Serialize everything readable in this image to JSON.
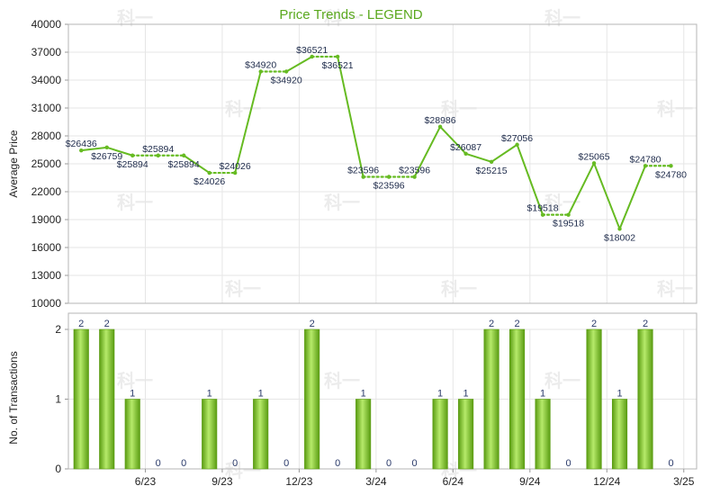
{
  "chart_data": [
    {
      "type": "line",
      "title": "Price Trends - LEGEND",
      "ylabel": "Average Price",
      "ylim": [
        10000,
        40000
      ],
      "yticks": [
        "10000",
        "13000",
        "16000",
        "19000",
        "22000",
        "25000",
        "28000",
        "31000",
        "34000",
        "37000",
        "40000"
      ],
      "grid": true,
      "color": "#66bb22",
      "points": [
        26436,
        26759,
        25894,
        25894,
        25894,
        24026,
        24026,
        34920,
        34920,
        36521,
        36521,
        23596,
        23596,
        23596,
        28986,
        26087,
        25215,
        27056,
        19518,
        19518,
        25065,
        18002,
        24780,
        24780
      ],
      "dashed_segments": [
        2,
        3,
        5,
        7,
        9,
        11,
        12,
        18,
        22
      ],
      "point_labels": [
        {
          "i": 0,
          "text": "$26436",
          "pos": "above"
        },
        {
          "i": 1,
          "text": "$26759",
          "pos": "below"
        },
        {
          "i": 2,
          "text": "$25894",
          "pos": "below"
        },
        {
          "i": 3,
          "text": "$25894",
          "pos": "above"
        },
        {
          "i": 4,
          "text": "$25894",
          "pos": "below"
        },
        {
          "i": 5,
          "text": "$24026",
          "pos": "below"
        },
        {
          "i": 6,
          "text": "$24026",
          "pos": "above"
        },
        {
          "i": 7,
          "text": "$34920",
          "pos": "above"
        },
        {
          "i": 8,
          "text": "$34920",
          "pos": "below"
        },
        {
          "i": 9,
          "text": "$36521",
          "pos": "above"
        },
        {
          "i": 10,
          "text": "$36521",
          "pos": "below"
        },
        {
          "i": 11,
          "text": "$23596",
          "pos": "above"
        },
        {
          "i": 12,
          "text": "$23596",
          "pos": "below"
        },
        {
          "i": 13,
          "text": "$23596",
          "pos": "above"
        },
        {
          "i": 14,
          "text": "$28986",
          "pos": "above"
        },
        {
          "i": 15,
          "text": "$26087",
          "pos": "above"
        },
        {
          "i": 16,
          "text": "$25215",
          "pos": "below"
        },
        {
          "i": 17,
          "text": "$27056",
          "pos": "above"
        },
        {
          "i": 18,
          "text": "$19518",
          "pos": "above"
        },
        {
          "i": 19,
          "text": "$19518",
          "pos": "below"
        },
        {
          "i": 20,
          "text": "$25065",
          "pos": "above"
        },
        {
          "i": 21,
          "text": "$18002",
          "pos": "below"
        },
        {
          "i": 22,
          "text": "$24780",
          "pos": "above"
        },
        {
          "i": 23,
          "text": "$24780",
          "pos": "below"
        }
      ]
    },
    {
      "type": "bar",
      "ylabel": "No. of Transactions",
      "ylim": [
        0,
        2
      ],
      "yticks": [
        "0",
        "1",
        "2"
      ],
      "grid": true,
      "values": [
        2,
        2,
        1,
        0,
        0,
        1,
        0,
        1,
        0,
        2,
        0,
        1,
        0,
        0,
        1,
        1,
        2,
        2,
        1,
        0,
        2,
        1,
        2,
        0
      ],
      "xtick_labels": [
        {
          "i": 2,
          "text": "6/23"
        },
        {
          "i": 5,
          "text": "9/23"
        },
        {
          "i": 8,
          "text": "12/23"
        },
        {
          "i": 11,
          "text": "3/24"
        },
        {
          "i": 14,
          "text": "6/24"
        },
        {
          "i": 17,
          "text": "9/24"
        },
        {
          "i": 20,
          "text": "12/24"
        },
        {
          "i": 23,
          "text": "3/25"
        }
      ],
      "bar_color": "#7dc42b"
    }
  ],
  "watermark": "科一"
}
